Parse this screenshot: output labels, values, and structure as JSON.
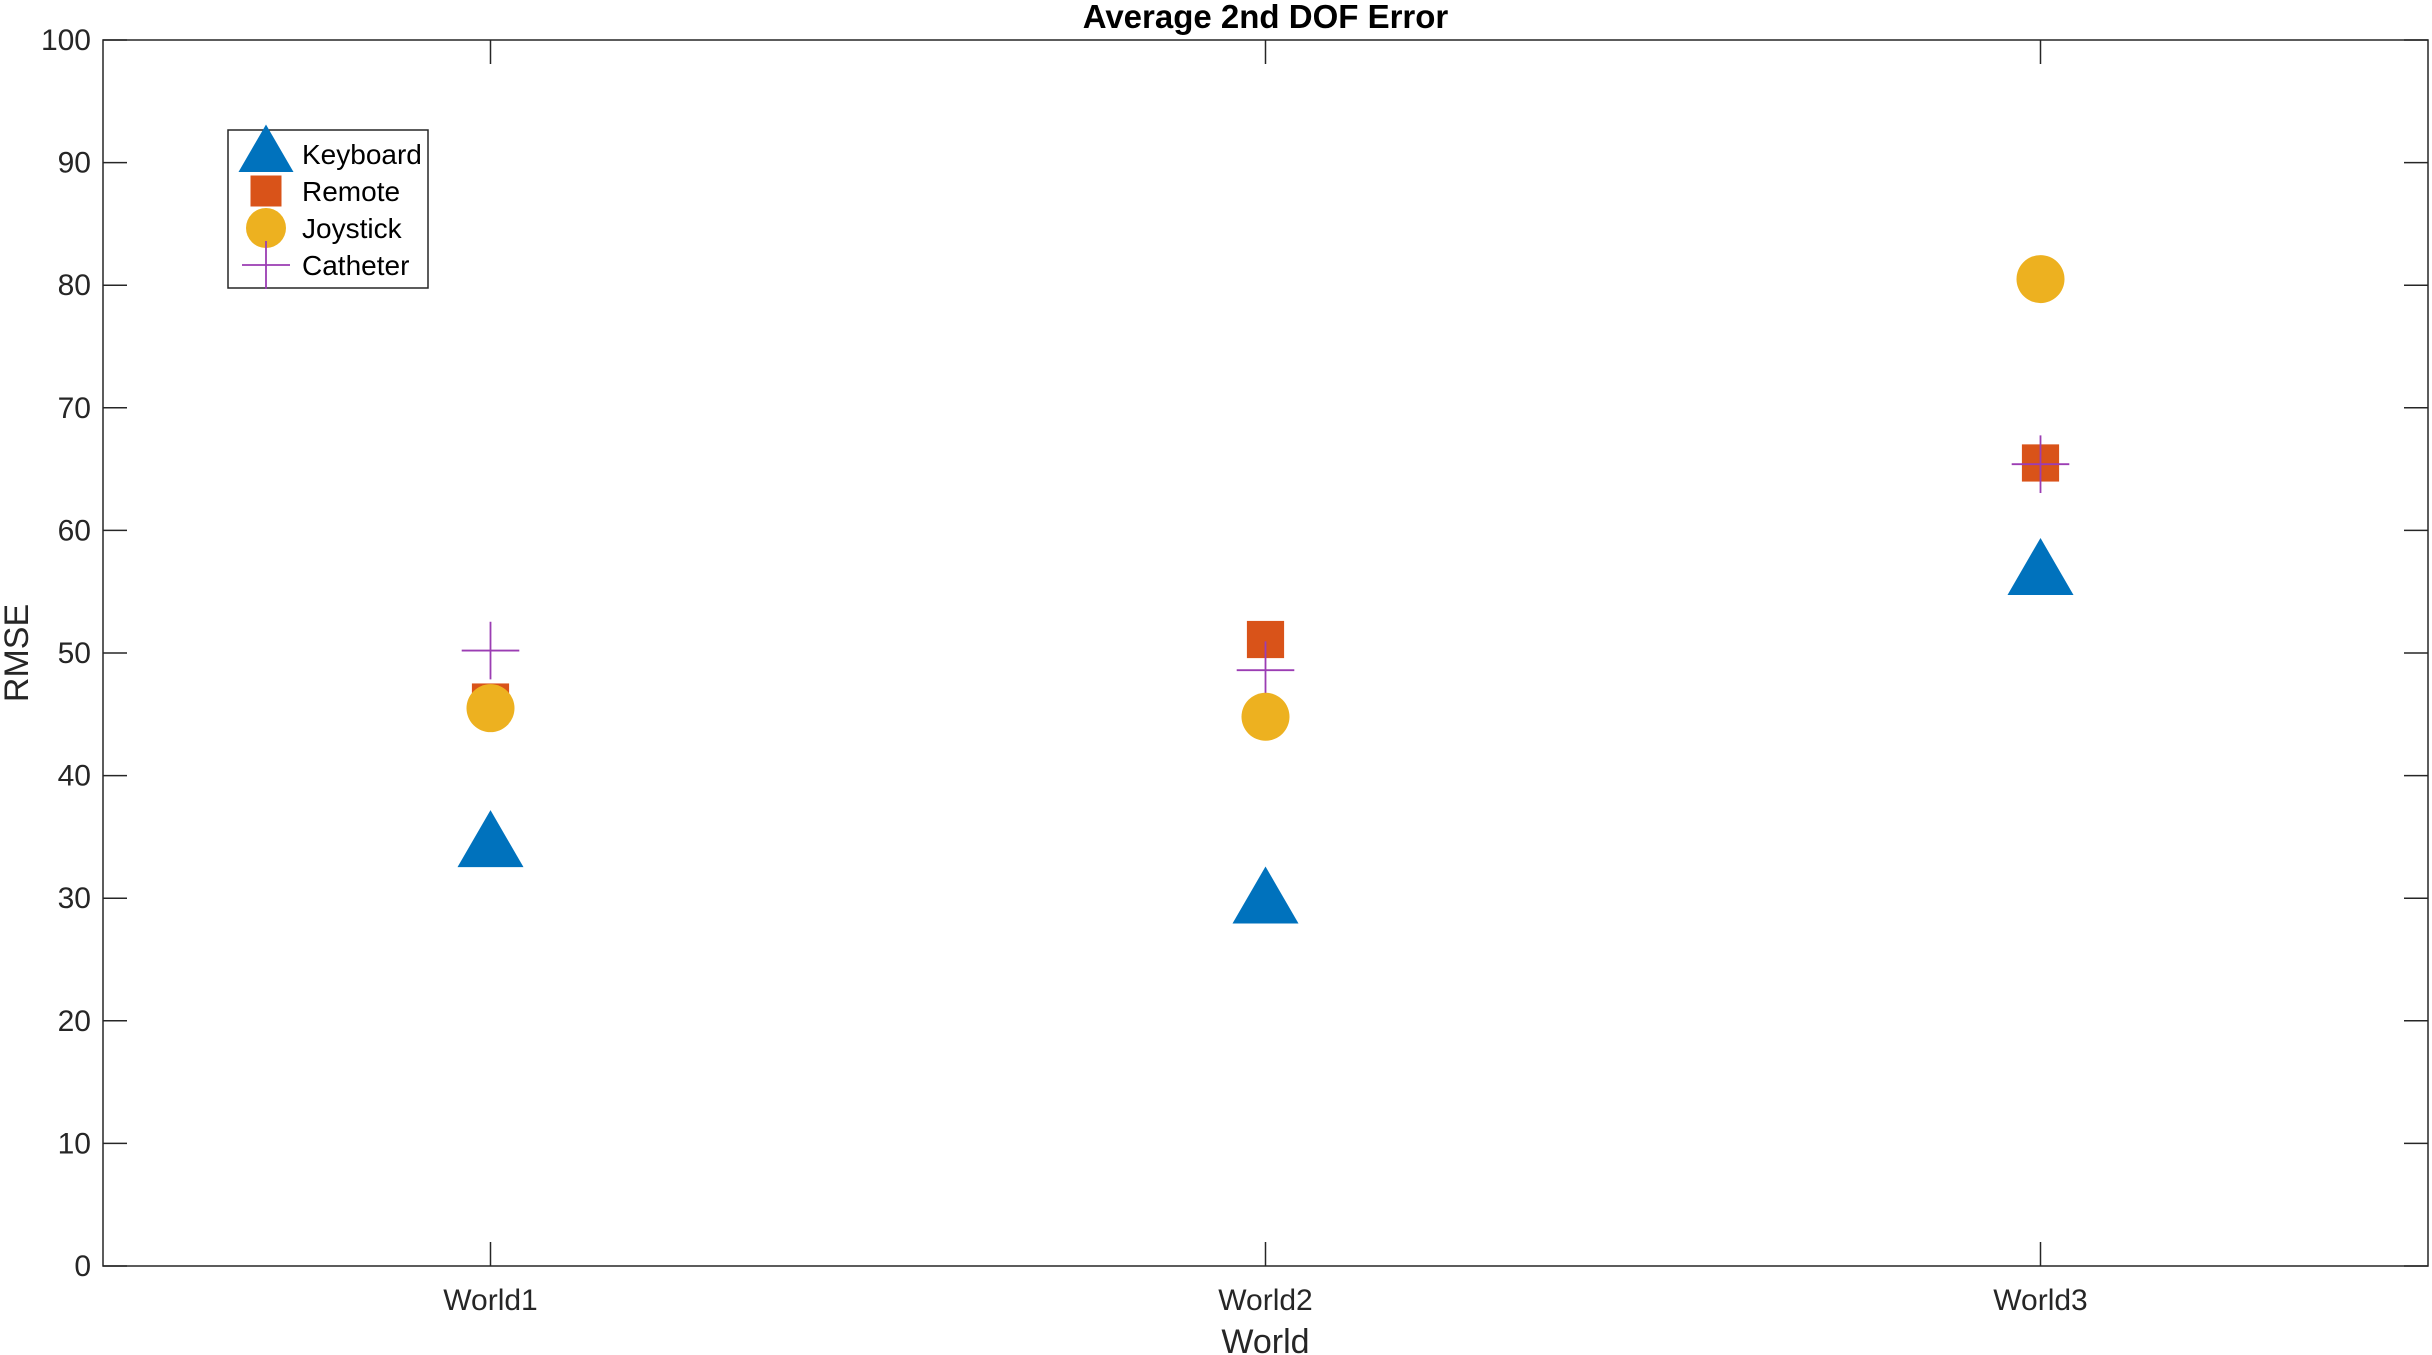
{
  "chart_data": {
    "type": "scatter",
    "title": "Average 2nd DOF Error",
    "xlabel": "World",
    "ylabel": "RMSE",
    "categories": [
      "World1",
      "World2",
      "World3"
    ],
    "ylim": [
      0,
      100
    ],
    "yticks": [
      0,
      10,
      20,
      30,
      40,
      50,
      60,
      70,
      80,
      90,
      100
    ],
    "grid": false,
    "legend_position": "top-left",
    "series": [
      {
        "name": "Keyboard",
        "marker": "triangle",
        "color": "#0072BD",
        "values": [
          34.3,
          29.7,
          56.5
        ]
      },
      {
        "name": "Remote",
        "marker": "square",
        "color": "#D95319",
        "values": [
          46.0,
          51.1,
          65.5
        ]
      },
      {
        "name": "Joystick",
        "marker": "circle",
        "color": "#EDB120",
        "values": [
          45.5,
          44.8,
          80.5
        ]
      },
      {
        "name": "Catheter",
        "marker": "plus",
        "color": "#9B3DB3",
        "values": [
          50.2,
          48.6,
          65.4
        ]
      }
    ]
  }
}
